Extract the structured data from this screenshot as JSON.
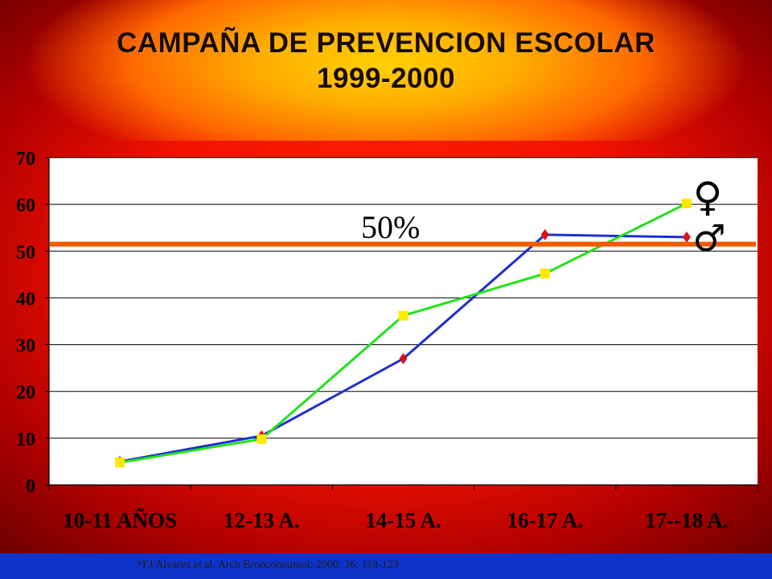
{
  "slide": {
    "title_line1": "CAMPAÑA DE PREVENCION ESCOLAR",
    "title_line2": "1999-2000",
    "citation": "*FJ Alvarez et al. Arch Bronconeumol; 2000;  36: 118-123"
  },
  "chart_data": {
    "type": "line",
    "categories": [
      "10-11 AÑOS",
      "12-13 A.",
      "14-15 A.",
      "16-17 A.",
      "17--18 A."
    ],
    "series": [
      {
        "name": "♂",
        "color": "#1f2fd0",
        "marker": "diamond",
        "marker_color": "#e01010",
        "values": [
          5,
          10.5,
          27,
          53.5,
          53
        ]
      },
      {
        "name": "♀",
        "color": "#22e21c",
        "marker": "square",
        "marker_color": "#ffe800",
        "values": [
          4.8,
          9.8,
          36.2,
          45.2,
          60.2
        ]
      }
    ],
    "ylim": [
      0,
      70
    ],
    "yticks": [
      0,
      10,
      20,
      30,
      40,
      50,
      60,
      70
    ],
    "grid": true,
    "reference_line": {
      "value": 51.5,
      "label": "50%",
      "color": "#f05a00"
    }
  }
}
